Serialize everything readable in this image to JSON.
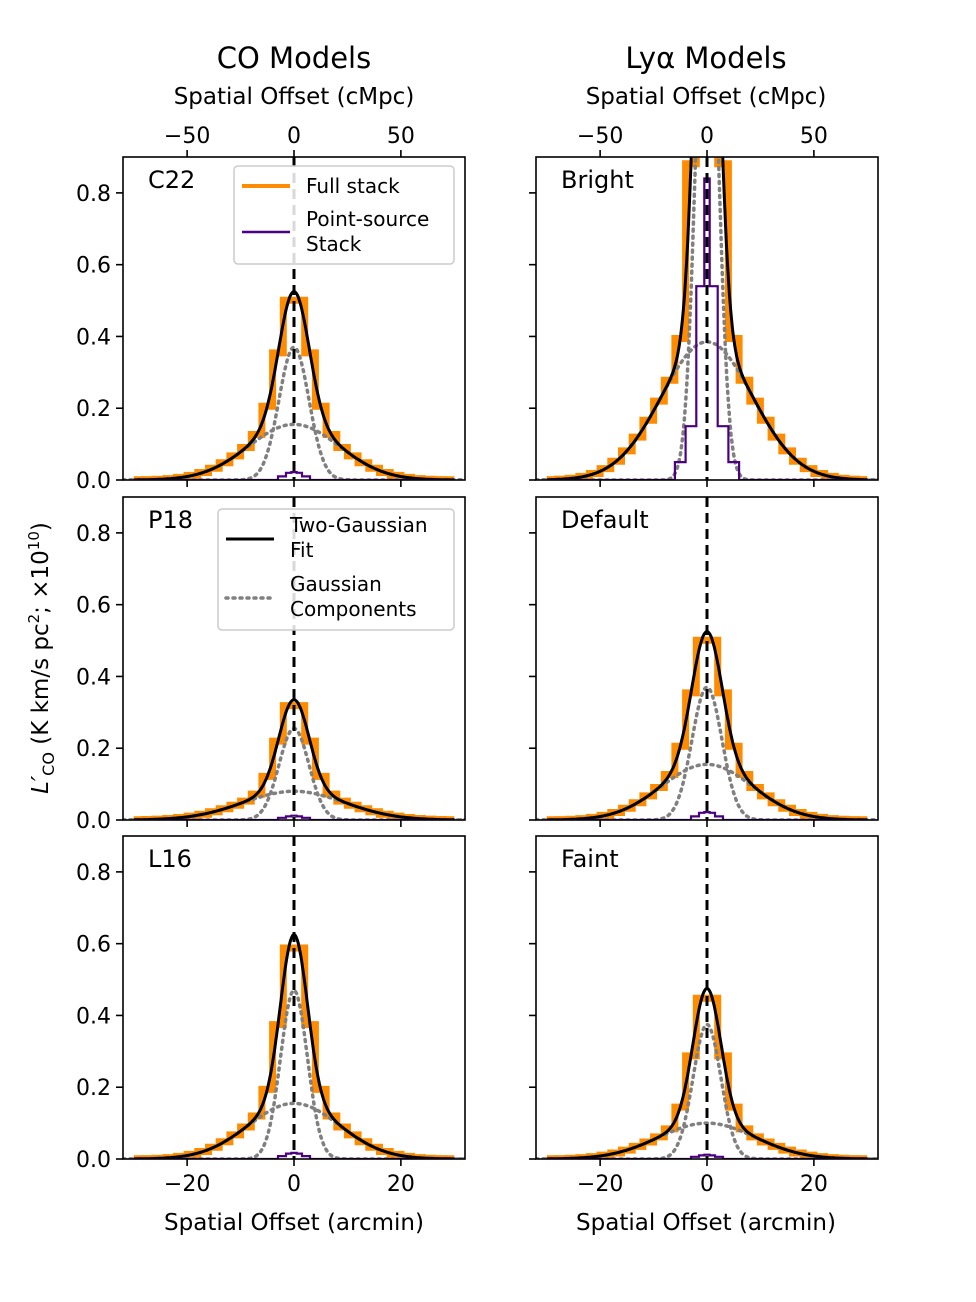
{
  "figure": {
    "col_titles": [
      "CO Models",
      "Lyα Models"
    ],
    "ylabel_main": "L′",
    "ylabel_sub": "CO",
    "ylabel_rest": " (K km/s pc",
    "ylabel_sup2": "2",
    "ylabel_rest2": "; ×10",
    "ylabel_sup10": "10",
    "ylabel_end": ")",
    "xlabel_bottom": "Spatial Offset (arcmin)",
    "xlabel_top": "Spatial Offset (cMpc)"
  },
  "legend_top": {
    "full_stack": "Full stack",
    "point_source_line1": "Point-source",
    "point_source_line2": "Stack"
  },
  "legend_mid": {
    "two_gauss_line1": "Two-Gaussian",
    "two_gauss_line2": "Fit",
    "components_line1": "Gaussian",
    "components_line2": "Components"
  },
  "colors": {
    "full_stack": "#ff8c00",
    "point_source": "#4b0082",
    "fit": "#000000",
    "components": "#808080",
    "zero_line": "#000000"
  },
  "axes": {
    "xlim": [
      -32,
      32
    ],
    "ylim": [
      0,
      0.9
    ],
    "xticks_bottom": [
      -20,
      0,
      20
    ],
    "xtick_labels_bottom": [
      "−20",
      "0",
      "20"
    ],
    "xticks_top_cmpc": [
      -50,
      0,
      50
    ],
    "xtick_labels_top": [
      "−50",
      "0",
      "50"
    ],
    "cmpc_per_arcmin": 2.5,
    "yticks": [
      0,
      0.2,
      0.4,
      0.6,
      0.8
    ],
    "ytick_labels": [
      "0.0",
      "0.2",
      "0.4",
      "0.6",
      "0.8"
    ]
  },
  "chart_data": [
    {
      "type": "line",
      "title": "C22",
      "row": 0,
      "col": 0,
      "amp1": 0.37,
      "sigma1": 2.8,
      "amp2": 0.155,
      "sigma2": 8.5,
      "point_source": [
        [
          -2,
          0.01
        ],
        [
          -1,
          0.02
        ],
        [
          0,
          0.022
        ],
        [
          1,
          0.02
        ],
        [
          2,
          0.01
        ]
      ]
    },
    {
      "type": "line",
      "title": "Bright",
      "row": 0,
      "col": 1,
      "amp1": 1.6,
      "sigma1": 2.0,
      "amp2": 0.385,
      "sigma2": 8.5,
      "point_source": [
        [
          -5,
          0.05
        ],
        [
          -3,
          0.15
        ],
        [
          -1,
          0.54
        ],
        [
          0,
          0.84
        ],
        [
          1,
          0.54
        ],
        [
          3,
          0.15
        ],
        [
          5,
          0.05
        ]
      ]
    },
    {
      "type": "line",
      "title": "P18",
      "row": 1,
      "col": 0,
      "amp1": 0.255,
      "sigma1": 2.8,
      "amp2": 0.08,
      "sigma2": 9.5,
      "point_source": [
        [
          -2,
          0.006
        ],
        [
          -1,
          0.01
        ],
        [
          0,
          0.012
        ],
        [
          1,
          0.01
        ],
        [
          2,
          0.006
        ]
      ]
    },
    {
      "type": "line",
      "title": "Default",
      "row": 1,
      "col": 1,
      "amp1": 0.37,
      "sigma1": 2.8,
      "amp2": 0.155,
      "sigma2": 8.5,
      "point_source": [
        [
          -2,
          0.01
        ],
        [
          -1,
          0.02
        ],
        [
          0,
          0.022
        ],
        [
          1,
          0.02
        ],
        [
          2,
          0.01
        ]
      ]
    },
    {
      "type": "line",
      "title": "L16",
      "row": 2,
      "col": 0,
      "amp1": 0.47,
      "sigma1": 2.5,
      "amp2": 0.155,
      "sigma2": 8.5,
      "point_source": [
        [
          -2,
          0.008
        ],
        [
          -1,
          0.015
        ],
        [
          0,
          0.017
        ],
        [
          1,
          0.015
        ],
        [
          2,
          0.008
        ]
      ]
    },
    {
      "type": "line",
      "title": "Faint",
      "row": 2,
      "col": 1,
      "amp1": 0.375,
      "sigma1": 2.6,
      "amp2": 0.1,
      "sigma2": 9.0,
      "point_source": [
        [
          -2,
          0.006
        ],
        [
          -1,
          0.01
        ],
        [
          0,
          0.012
        ],
        [
          1,
          0.01
        ],
        [
          2,
          0.006
        ]
      ]
    }
  ]
}
